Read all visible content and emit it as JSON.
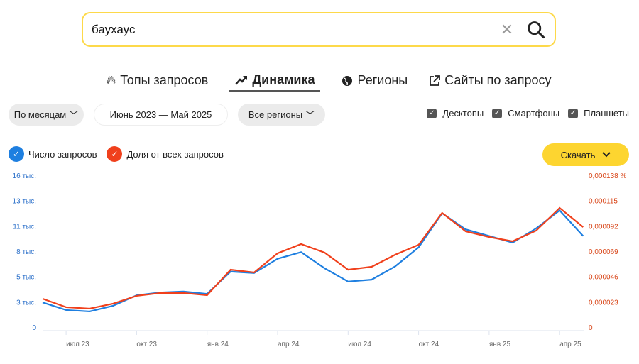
{
  "search": {
    "value": "баухаус",
    "clear_icon": "close-icon",
    "search_icon": "search-icon"
  },
  "tabs": [
    {
      "label": "Топы запросов",
      "icon": "fire-icon"
    },
    {
      "label": "Динамика",
      "icon": "trend-icon",
      "active": true
    },
    {
      "label": "Регионы",
      "icon": "globe-icon"
    },
    {
      "label": "Сайты по запросу",
      "icon": "external-link-icon"
    }
  ],
  "filters": {
    "period": "По месяцам",
    "range": "Июнь 2023 — Май 2025",
    "region": "Все регионы"
  },
  "devices": [
    {
      "label": "Десктопы",
      "checked": true
    },
    {
      "label": "Смартфоны",
      "checked": true
    },
    {
      "label": "Планшеты",
      "checked": true
    }
  ],
  "legend": [
    {
      "label": "Число запросов",
      "color": "#1e7fe0"
    },
    {
      "label": "Доля от всех запросов",
      "color": "#f0401c"
    }
  ],
  "download": {
    "label": "Скачать"
  },
  "chart_data": {
    "type": "line",
    "x": [
      "июн 23",
      "июл 23",
      "авг 23",
      "сен 23",
      "окт 23",
      "ноя 23",
      "дек 23",
      "янв 24",
      "фев 24",
      "мар 24",
      "апр 24",
      "май 24",
      "июн 24",
      "июл 24",
      "авг 24",
      "сен 24",
      "окт 24",
      "ноя 24",
      "дек 24",
      "янв 25",
      "фев 25",
      "мар 25",
      "апр 25",
      "май 25"
    ],
    "x_tick_labels": [
      "июл 23",
      "окт 23",
      "янв 24",
      "апр 24",
      "июл 24",
      "окт 24",
      "янв 25",
      "апр 25"
    ],
    "left_axis": {
      "ticks": [
        "0",
        "3 тыс.",
        "5 тыс.",
        "8 тыс.",
        "11 тыс.",
        "13 тыс.",
        "16 тыс."
      ],
      "ylim": [
        0,
        16000
      ],
      "color": "#1e7fe0"
    },
    "right_axis": {
      "ticks": [
        "0",
        "0,000023",
        "0,000046",
        "0,000069",
        "0,000092",
        "0,000115",
        "0,000138 %"
      ],
      "ylim": [
        0,
        0.000138
      ],
      "color": "#d84315"
    },
    "series": [
      {
        "name": "Число запросов",
        "axis": "left",
        "color": "#1e7fe0",
        "values": [
          2600,
          1800,
          1650,
          2250,
          3350,
          3650,
          3750,
          3500,
          5850,
          5700,
          7200,
          7900,
          6200,
          4800,
          5000,
          6400,
          8400,
          12000,
          10300,
          9600,
          8900,
          10400,
          12300,
          9600
        ]
      },
      {
        "name": "Доля от всех запросов",
        "axis": "right",
        "color": "#f0401c",
        "values": [
          2.58e-05,
          1.81e-05,
          1.68e-05,
          2.13e-05,
          2.84e-05,
          3.1e-05,
          3.1e-05,
          2.9e-05,
          5.22e-05,
          4.97e-05,
          6.71e-05,
          7.55e-05,
          6.77e-05,
          5.22e-05,
          5.48e-05,
          6.58e-05,
          7.48e-05,
          0.0001038,
          8.71e-05,
          8.19e-05,
          7.8e-05,
          8.77e-05,
          0.0001083,
          9.09e-05
        ]
      }
    ],
    "grid": false
  }
}
